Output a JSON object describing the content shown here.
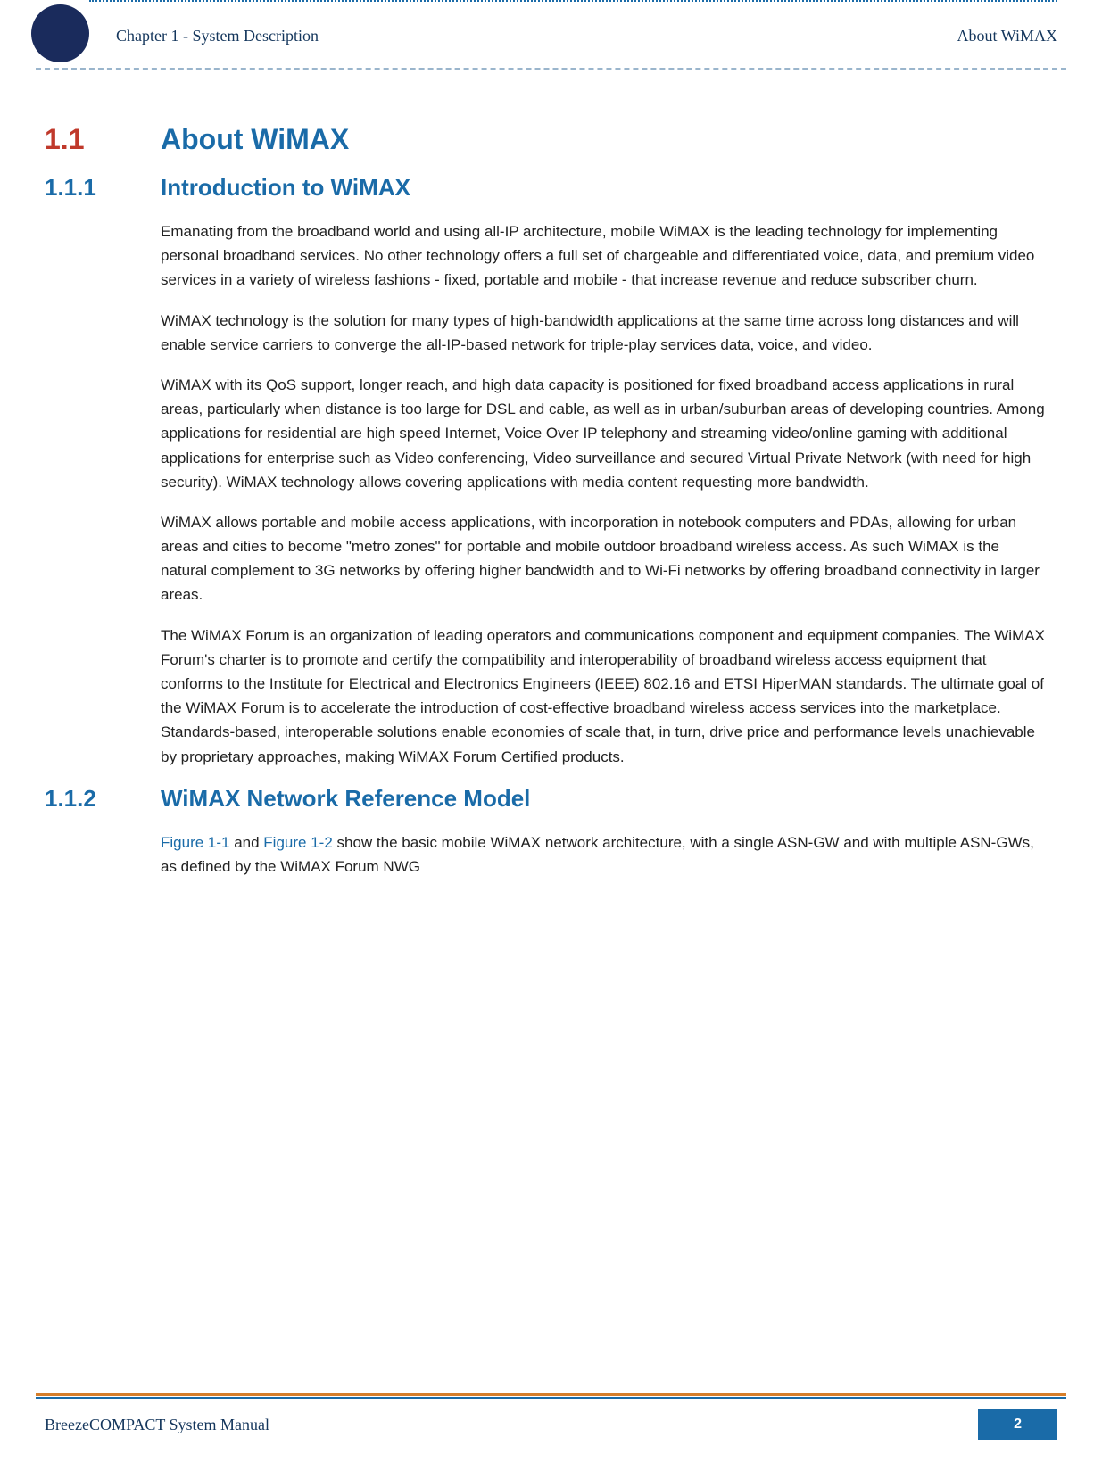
{
  "header": {
    "chapter_label": "Chapter 1 - System Description",
    "topic_label": "About WiMAX"
  },
  "sections": {
    "s1": {
      "number": "1.1",
      "title": "About WiMAX"
    },
    "s11": {
      "number": "1.1.1",
      "title": "Introduction to WiMAX"
    },
    "s12": {
      "number": "1.1.2",
      "title": "WiMAX Network Reference Model"
    }
  },
  "paragraphs": {
    "p1": "Emanating from the broadband world and using all-IP architecture, mobile WiMAX is the leading technology for implementing personal broadband services. No other technology offers a full set of chargeable and differentiated voice, data, and premium video services in a variety of wireless fashions - fixed, portable and mobile - that increase revenue and reduce subscriber churn.",
    "p2": "WiMAX technology is the solution for many types of high-bandwidth applications at the same time across long distances and will enable service carriers to converge the all-IP-based network for triple-play services data, voice, and video.",
    "p3": "WiMAX with its QoS support, longer reach, and high data capacity is positioned for fixed broadband access applications in rural areas, particularly when distance is too large for DSL and cable, as well as in urban/suburban areas of developing countries. Among applications for residential are high speed Internet, Voice Over IP telephony and streaming video/online gaming with additional applications for enterprise such as Video conferencing, Video surveillance and secured Virtual Private Network (with need for high security). WiMAX technology allows covering applications with media content requesting more bandwidth.",
    "p4": "WiMAX allows portable and mobile access applications, with incorporation in notebook computers and PDAs, allowing for urban areas and cities to become \"metro zones\" for portable and mobile outdoor broadband wireless access. As such WiMAX is the natural complement to 3G networks by offering higher bandwidth and to Wi-Fi networks by offering broadband connectivity in larger areas.",
    "p5": "The WiMAX Forum is an organization of leading operators and communications component and equipment companies. The WiMAX Forum's charter is to promote and certify the compatibility and interoperability of broadband wireless access equipment that conforms to the Institute for Electrical and Electronics Engineers (IEEE) 802.16 and ETSI HiperMAN standards. The ultimate goal of the WiMAX Forum is to accelerate the introduction of cost-effective broadband wireless access services into the marketplace. Standards-based, interoperable solutions enable economies of scale that, in turn, drive price and performance levels unachievable by proprietary approaches, making WiMAX Forum Certified products.",
    "p6_ref1": "Figure 1-1",
    "p6_mid1": " and ",
    "p6_ref2": "Figure 1-2",
    "p6_rest": " show the basic mobile WiMAX network architecture, with a single ASN-GW and with multiple ASN-GWs, as defined by the WiMAX Forum NWG"
  },
  "footer": {
    "manual_name": "BreezeCOMPACT System Manual",
    "page_number": "2"
  },
  "colors": {
    "heading_red": "#c0392b",
    "heading_blue": "#1a6ba8",
    "text_dark": "#222222",
    "header_navy": "#14365c",
    "circle_navy": "#1a2b5c",
    "footer_orange": "#d67e2a"
  }
}
